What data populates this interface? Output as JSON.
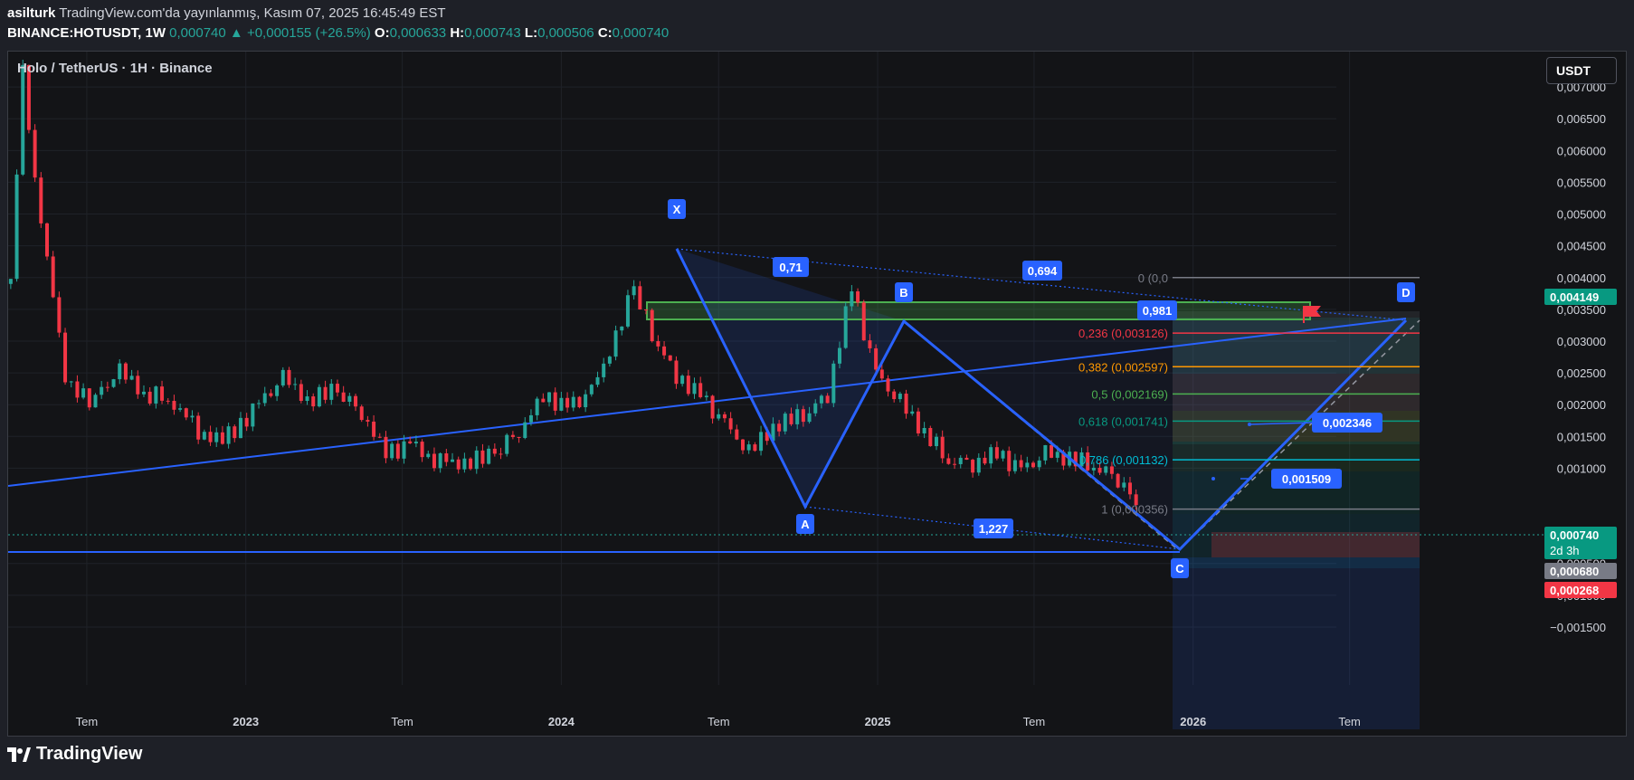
{
  "header": {
    "author": "asilturk",
    "published": "TradingView.com'da yayınlanmış, Kasım 07, 2025 16:45:49 EST",
    "symbol": "BINANCE:HOTUSDT, 1W",
    "last": "0,000740",
    "change_arrow": "▲",
    "change": "+0,000155 (+26.5%)",
    "o_label": "O:",
    "o": "0,000633",
    "h_label": "H:",
    "h": "0,000743",
    "l_label": "L:",
    "l": "0,000506",
    "c_label": "C:",
    "c": "0,000740"
  },
  "chart": {
    "title": "Holo / TetherUS · 1H · Binance",
    "currency": "USDT",
    "colors": {
      "up": "#26a69a",
      "down": "#f23645",
      "pattern": "#2962ff",
      "box": "#4caf50"
    },
    "y_axis": [
      "0,007000",
      "0,006500",
      "0,006000",
      "0,005500",
      "0,005000",
      "0,004500",
      "0,004000",
      "0,003500",
      "0,003000",
      "0,002500",
      "0,002000",
      "0,001500",
      "0,001000",
      "−0,000500",
      "−0,001000",
      "−0,001500"
    ],
    "x_axis": [
      "Tem",
      "2023",
      "Tem",
      "2024",
      "Tem",
      "2025",
      "Tem",
      "2026",
      "Tem"
    ],
    "price_tags": [
      {
        "text": "0,004149",
        "color": "#089981"
      },
      {
        "text": "0,000740",
        "sub": "2d 3h",
        "color": "#089981"
      },
      {
        "text": "0,000680",
        "color": "#787b86"
      },
      {
        "text": "0,000268",
        "color": "#f23645"
      }
    ],
    "pattern_points": [
      "X",
      "A",
      "B",
      "C",
      "D"
    ],
    "ratios": [
      "0,71",
      "0,694",
      "0,981",
      "1,227",
      "0,002346",
      "0,001509"
    ],
    "fib_levels": [
      {
        "text": "0 (0,0",
        "color": "#787b86"
      },
      {
        "text": "0,236 (0,003126)",
        "color": "#f23645"
      },
      {
        "text": "0,382 (0,002597)",
        "color": "#ff9800"
      },
      {
        "text": "0,5 (0,002169)",
        "color": "#4caf50"
      },
      {
        "text": "0,618 (0,001741)",
        "color": "#089981"
      },
      {
        "text": "0,786 (0,001132)",
        "color": "#00bcd4"
      },
      {
        "text": "1 (0,000356)",
        "color": "#787b86"
      }
    ]
  },
  "chart_data": {
    "type": "candlestick",
    "ylim": [
      -0.0017,
      0.0075
    ],
    "x_range": [
      "2022-04-01",
      "2026-09-20"
    ],
    "close_series": [
      [
        "2022-04-04",
        0.0039
      ],
      [
        "2022-04-18",
        0.0072
      ],
      [
        "2022-05-02",
        0.0055
      ],
      [
        "2022-05-16",
        0.0044
      ],
      [
        "2022-06-06",
        0.0025
      ],
      [
        "2022-06-20",
        0.0022
      ],
      [
        "2022-07-11",
        0.0021
      ],
      [
        "2022-08-08",
        0.0025
      ],
      [
        "2022-09-05",
        0.0021
      ],
      [
        "2022-10-03",
        0.0021
      ],
      [
        "2022-11-07",
        0.0016
      ],
      [
        "2022-12-05",
        0.0015
      ],
      [
        "2023-01-16",
        0.002
      ],
      [
        "2023-02-13",
        0.0024
      ],
      [
        "2023-03-13",
        0.002
      ],
      [
        "2023-04-17",
        0.0022
      ],
      [
        "2023-05-15",
        0.0019
      ],
      [
        "2023-06-12",
        0.0013
      ],
      [
        "2023-07-10",
        0.0014
      ],
      [
        "2023-08-14",
        0.0011
      ],
      [
        "2023-09-11",
        0.001
      ],
      [
        "2023-10-16",
        0.0012
      ],
      [
        "2023-11-13",
        0.0016
      ],
      [
        "2023-12-11",
        0.0022
      ],
      [
        "2024-01-08",
        0.002
      ],
      [
        "2024-02-05",
        0.0022
      ],
      [
        "2024-03-04",
        0.003
      ],
      [
        "2024-03-25",
        0.0038
      ],
      [
        "2024-04-15",
        0.0031
      ],
      [
        "2024-05-13",
        0.0025
      ],
      [
        "2024-06-10",
        0.0022
      ],
      [
        "2024-07-08",
        0.0017
      ],
      [
        "2024-08-05",
        0.0012
      ],
      [
        "2024-09-02",
        0.0016
      ],
      [
        "2024-10-07",
        0.0018
      ],
      [
        "2024-11-04",
        0.0022
      ],
      [
        "2024-12-02",
        0.0039
      ],
      [
        "2024-12-30",
        0.0025
      ],
      [
        "2025-01-27",
        0.002
      ],
      [
        "2025-02-24",
        0.0015
      ],
      [
        "2025-03-24",
        0.0011
      ],
      [
        "2025-04-21",
        0.0011
      ],
      [
        "2025-05-19",
        0.0013
      ],
      [
        "2025-06-16",
        0.001
      ],
      [
        "2025-07-14",
        0.0012
      ],
      [
        "2025-08-11",
        0.0011
      ],
      [
        "2025-09-08",
        0.001
      ],
      [
        "2025-10-06",
        0.00085
      ],
      [
        "2025-10-27",
        0.00059
      ],
      [
        "2025-11-03",
        0.00074
      ]
    ],
    "harmonic_pattern": {
      "X": [
        "2024-03-18",
        0.0052
      ],
      "A": [
        "2024-08-05",
        0.0011
      ],
      "B": [
        "2024-12-02",
        0.004
      ],
      "C": [
        "2025-10-13",
        0.00036
      ],
      "D": [
        "2026-07-06",
        0.004
      ]
    },
    "fib_retracement": [
      {
        "level": 0,
        "value": 0.004
      },
      {
        "level": 0.236,
        "value": 0.003126
      },
      {
        "level": 0.382,
        "value": 0.002597
      },
      {
        "level": 0.5,
        "value": 0.002169
      },
      {
        "level": 0.618,
        "value": 0.001741
      },
      {
        "level": 0.786,
        "value": 0.001132
      },
      {
        "level": 1,
        "value": 0.000356
      }
    ]
  },
  "footer": {
    "brand": "TradingView"
  }
}
